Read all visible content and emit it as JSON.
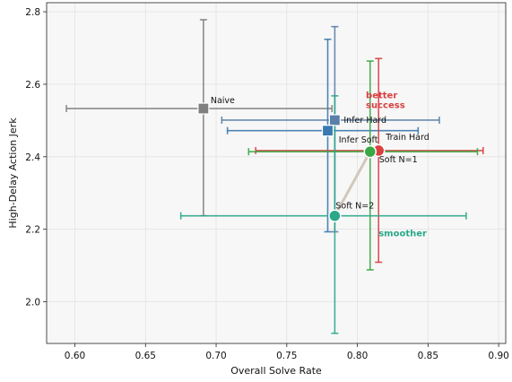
{
  "chart_data": {
    "type": "scatter",
    "xlabel": "Overall Solve Rate",
    "ylabel": "High-Delay Action Jerk",
    "xlim": [
      0.58,
      0.905
    ],
    "ylim": [
      1.885,
      2.825
    ],
    "xticks": [
      0.6,
      0.65,
      0.7,
      0.75,
      0.8,
      0.85,
      0.9
    ],
    "xtick_labels": [
      "0.60",
      "0.65",
      "0.70",
      "0.75",
      "0.80",
      "0.85",
      "0.90"
    ],
    "yticks": [
      2.0,
      2.2,
      2.4,
      2.6,
      2.8
    ],
    "ytick_labels": [
      "2.0",
      "2.2",
      "2.4",
      "2.6",
      "2.8"
    ],
    "grid": true,
    "points": [
      {
        "label": "Naive",
        "x": 0.691,
        "y": 2.533,
        "xerr": [
          0.594,
          0.782
        ],
        "yerr": [
          2.237,
          2.778
        ],
        "marker": "square",
        "color": "#808080"
      },
      {
        "label": "Infer Hard",
        "x": 0.784,
        "y": 2.501,
        "xerr": [
          0.704,
          0.858
        ],
        "yerr": [
          2.193,
          2.759
        ],
        "marker": "square",
        "color": "#5b7fa8"
      },
      {
        "label": "",
        "x": 0.779,
        "y": 2.472,
        "xerr": [
          0.708,
          0.843
        ],
        "yerr": [
          2.193,
          2.724
        ],
        "marker": "square",
        "color": "#3a78b0"
      },
      {
        "label": "Train Hard",
        "x": 0.815,
        "y": 2.417,
        "xerr": [
          0.728,
          0.889
        ],
        "yerr": [
          2.109,
          2.671
        ],
        "marker": "circle",
        "color": "#d94040"
      },
      {
        "label": "Infer Soft",
        "x": 0.809,
        "y": 2.414,
        "xerr": [
          0.723,
          0.885
        ],
        "yerr": [
          2.088,
          2.664
        ],
        "marker": "circle",
        "color": "#3aa843"
      },
      {
        "label": "Soft N=1",
        "x": 0.809,
        "y": 2.414,
        "xerr": [
          0.809,
          0.809
        ],
        "yerr": [
          2.414,
          2.414
        ],
        "marker": "none",
        "color": "#3aa843"
      },
      {
        "label": "Soft N=2",
        "x": 0.784,
        "y": 2.237,
        "xerr": [
          0.675,
          0.877
        ],
        "yerr": [
          1.913,
          2.568
        ],
        "marker": "circle",
        "color": "#2aa889"
      }
    ],
    "connector": {
      "from": [
        0.784,
        2.237
      ],
      "to": [
        0.809,
        2.414
      ],
      "color": "#d2c7bb"
    },
    "annotations": [
      {
        "text": "better\nsuccess",
        "x": 0.806,
        "y": 2.562,
        "color": "#d94040"
      },
      {
        "text": "smoother",
        "x": 0.815,
        "y": 2.18,
        "color": "#2aa889"
      }
    ]
  }
}
